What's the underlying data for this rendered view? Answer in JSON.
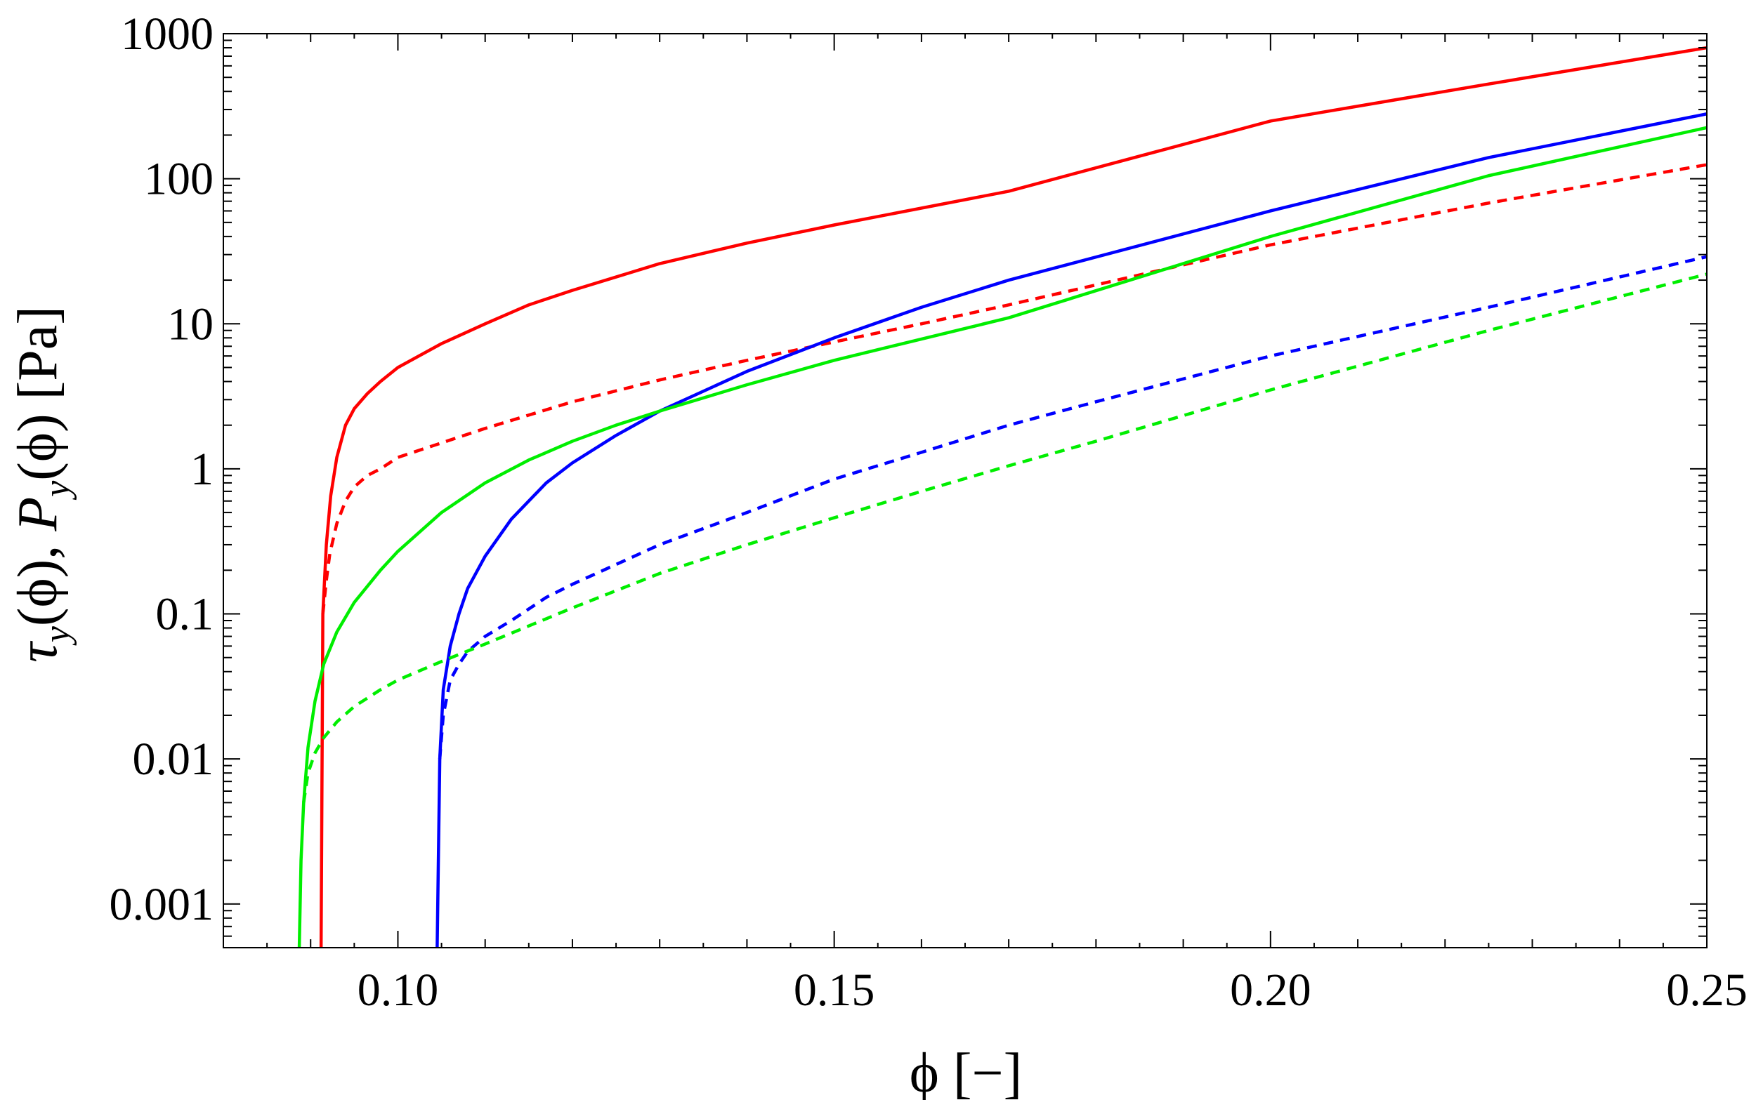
{
  "chart_data": {
    "type": "line",
    "title": "",
    "xlabel": "ϕ [−]",
    "ylabel": "τy(ϕ), Py(ϕ) [Pa]",
    "ylabel_parts": {
      "tau": "τ",
      "tau_sub": "y",
      "tau_arg": "(ϕ), ",
      "p": "P",
      "p_sub": "y",
      "p_arg": "(ϕ) [Pa]"
    },
    "xlim": [
      0.08,
      0.25
    ],
    "ylim": [
      0.0005,
      1000
    ],
    "yscale": "log",
    "grid": false,
    "x_ticks": [
      {
        "value": 0.1,
        "label": "0.10"
      },
      {
        "value": 0.15,
        "label": "0.15"
      },
      {
        "value": 0.2,
        "label": "0.20"
      },
      {
        "value": 0.25,
        "label": "0.25"
      }
    ],
    "y_ticks": [
      {
        "value": 0.001,
        "label": "0.001"
      },
      {
        "value": 0.01,
        "label": "0.01"
      },
      {
        "value": 0.1,
        "label": "0.1"
      },
      {
        "value": 1,
        "label": "1"
      },
      {
        "value": 10,
        "label": "10"
      },
      {
        "value": 100,
        "label": "100"
      },
      {
        "value": 1000,
        "label": "1000"
      }
    ],
    "series": [
      {
        "color": "#ff0000",
        "style": "solid",
        "x": [
          0.0912,
          0.0914,
          0.0918,
          0.0923,
          0.093,
          0.094,
          0.095,
          0.0965,
          0.098,
          0.1,
          0.105,
          0.11,
          0.115,
          0.12,
          0.13,
          0.14,
          0.15,
          0.17,
          0.2,
          0.225,
          0.25
        ],
        "y": [
          0.0005,
          0.1,
          0.3,
          0.65,
          1.2,
          2.0,
          2.6,
          3.3,
          4.0,
          5.0,
          7.3,
          10.0,
          13.5,
          17.0,
          26.0,
          36.0,
          48.0,
          82.0,
          250.0,
          450.0,
          800.0
        ]
      },
      {
        "color": "#ff0000",
        "style": "dashed",
        "x": [
          0.0914,
          0.0918,
          0.0922,
          0.093,
          0.094,
          0.095,
          0.0965,
          0.098,
          0.1,
          0.11,
          0.12,
          0.13,
          0.14,
          0.15,
          0.16,
          0.17,
          0.2,
          0.225,
          0.25
        ],
        "y": [
          0.1,
          0.17,
          0.26,
          0.42,
          0.6,
          0.75,
          0.9,
          1.0,
          1.2,
          1.9,
          2.9,
          4.1,
          5.6,
          7.5,
          10.0,
          13.5,
          35.0,
          68.0,
          125.0
        ]
      },
      {
        "color": "#0000ff",
        "style": "solid",
        "x": [
          0.1045,
          0.1048,
          0.1052,
          0.106,
          0.107,
          0.108,
          0.11,
          0.113,
          0.117,
          0.12,
          0.125,
          0.13,
          0.14,
          0.15,
          0.16,
          0.17,
          0.2,
          0.225,
          0.25
        ],
        "y": [
          0.0005,
          0.01,
          0.03,
          0.06,
          0.1,
          0.15,
          0.25,
          0.45,
          0.8,
          1.1,
          1.7,
          2.5,
          4.7,
          8.0,
          13.0,
          20.0,
          60.0,
          140.0,
          280.0
        ]
      },
      {
        "color": "#0000ff",
        "style": "dashed",
        "x": [
          0.1048,
          0.1052,
          0.106,
          0.107,
          0.108,
          0.11,
          0.113,
          0.117,
          0.12,
          0.13,
          0.14,
          0.15,
          0.16,
          0.17,
          0.18,
          0.2,
          0.225,
          0.25
        ],
        "y": [
          0.01,
          0.02,
          0.035,
          0.045,
          0.055,
          0.07,
          0.09,
          0.13,
          0.16,
          0.3,
          0.5,
          0.85,
          1.3,
          2.0,
          2.9,
          6.0,
          13.0,
          29.0
        ]
      },
      {
        "color": "#00ee00",
        "style": "solid",
        "x": [
          0.0887,
          0.0889,
          0.0892,
          0.0897,
          0.0905,
          0.0915,
          0.093,
          0.095,
          0.098,
          0.1,
          0.105,
          0.11,
          0.115,
          0.12,
          0.125,
          0.13,
          0.14,
          0.15,
          0.17,
          0.2,
          0.225,
          0.25
        ],
        "y": [
          0.0005,
          0.002,
          0.005,
          0.012,
          0.025,
          0.045,
          0.075,
          0.12,
          0.2,
          0.27,
          0.5,
          0.8,
          1.15,
          1.55,
          2.0,
          2.5,
          3.8,
          5.6,
          11.0,
          40.0,
          105.0,
          225.0
        ]
      },
      {
        "color": "#00ee00",
        "style": "dashed",
        "x": [
          0.0892,
          0.0897,
          0.0905,
          0.0915,
          0.093,
          0.095,
          0.098,
          0.1,
          0.105,
          0.11,
          0.12,
          0.13,
          0.14,
          0.15,
          0.16,
          0.17,
          0.18,
          0.2,
          0.225,
          0.25
        ],
        "y": [
          0.005,
          0.008,
          0.011,
          0.014,
          0.018,
          0.023,
          0.03,
          0.035,
          0.047,
          0.062,
          0.11,
          0.19,
          0.3,
          0.46,
          0.7,
          1.05,
          1.55,
          3.5,
          9.0,
          22.0
        ]
      }
    ]
  }
}
